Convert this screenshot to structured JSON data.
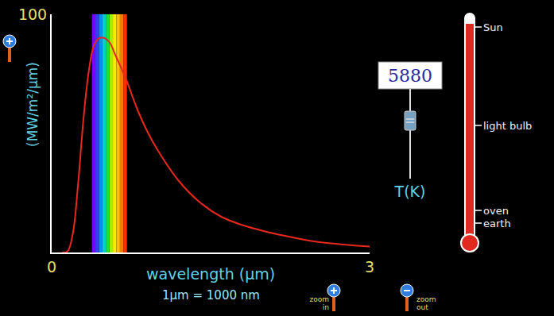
{
  "chart_data": {
    "type": "line",
    "x_label": "wavelength (µm)",
    "y_label": "(MW/m²/µm)",
    "annotations": [
      "1µm = 1000 nm"
    ],
    "x": [
      0.1,
      0.15,
      0.2,
      0.25,
      0.3,
      0.35,
      0.4,
      0.45,
      0.5,
      0.55,
      0.6,
      0.7,
      0.8,
      0.9,
      1.0,
      1.2,
      1.4,
      1.6,
      1.8,
      2.0,
      2.2,
      2.5,
      2.8,
      3.0
    ],
    "values": [
      0,
      0.5,
      8,
      29,
      56,
      76,
      87,
      90,
      90,
      88,
      83,
      73,
      61,
      51,
      43,
      30,
      21,
      15,
      11.5,
      9,
      7,
      4.5,
      3.2,
      2.5
    ],
    "color": "#e8281e",
    "xlim": [
      0,
      3
    ],
    "xticks": [
      0,
      3
    ],
    "ylim": [
      0,
      100
    ],
    "yticks": [
      100
    ],
    "grid": false,
    "visible_band": [
      0.38,
      0.71
    ],
    "temperature": {
      "value": 5880,
      "label": "T(K)"
    },
    "thermometer_labels": [
      "Sun",
      "light bulb",
      "oven",
      "earth"
    ],
    "zoom_labels": [
      "zoom in",
      "zoom out"
    ]
  }
}
